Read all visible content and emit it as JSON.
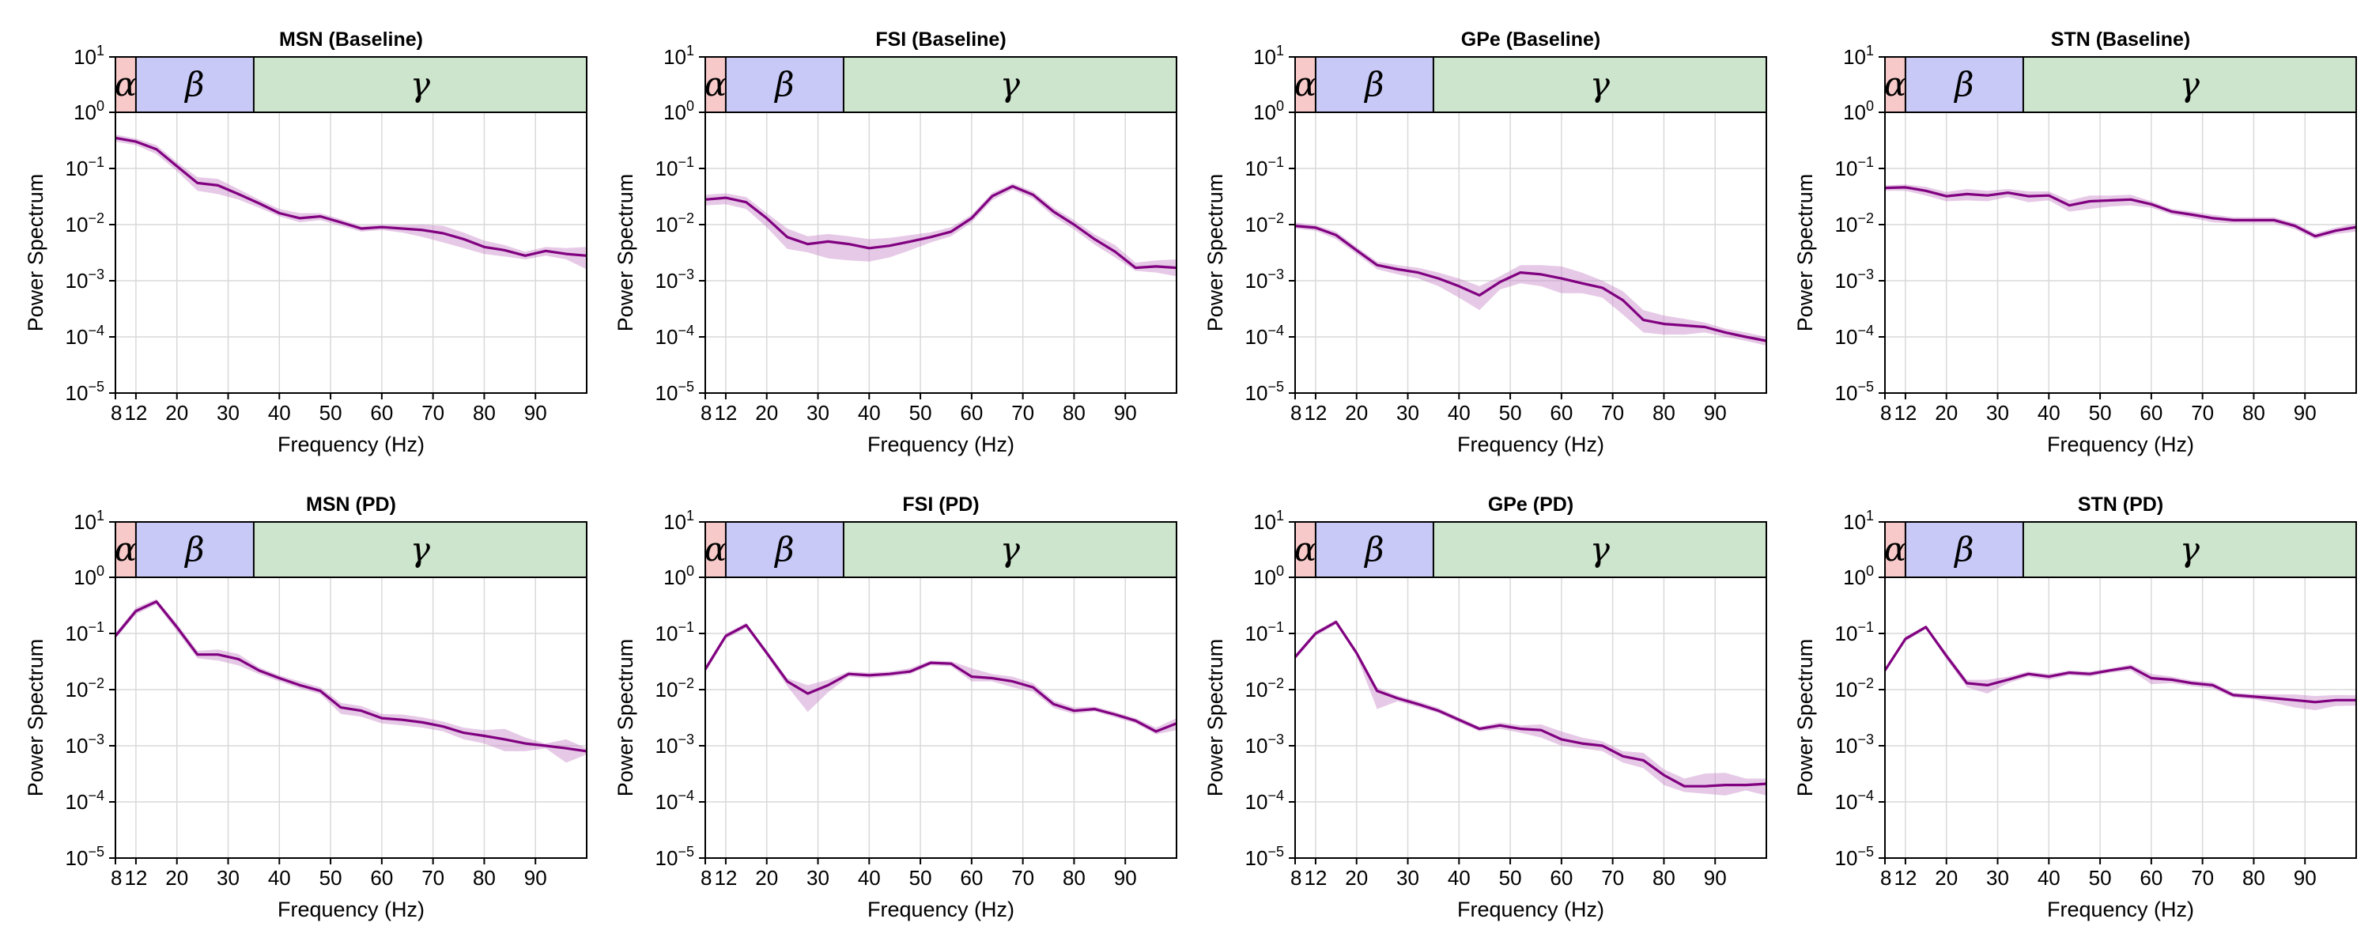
{
  "figure": {
    "xlabel": "Frequency (Hz)",
    "ylabel": "Power Spectrum",
    "band_labels": [
      "α",
      "β",
      "γ"
    ],
    "colors": {
      "line": "#800080",
      "band_fill": "#c888c8",
      "alpha_band": "#f7c9c8",
      "beta_band": "#c8c9f7",
      "gamma_band": "#cde5cd",
      "grid": "#d9d9d9"
    }
  },
  "chart_data": [
    {
      "type": "line",
      "title": "MSN (Baseline)",
      "xlabel": "Frequency (Hz)",
      "ylabel": "Power Spectrum",
      "yscale": "log",
      "ylim": [
        1e-05,
        1
      ],
      "xlim": [
        8,
        100
      ],
      "xticks": [
        8,
        12,
        20,
        30,
        40,
        50,
        60,
        70,
        80,
        90
      ],
      "bands": [
        {
          "label": "α",
          "range": [
            8,
            12
          ]
        },
        {
          "label": "β",
          "range": [
            12,
            35
          ]
        },
        {
          "label": "γ",
          "range": [
            35,
            100
          ]
        }
      ],
      "x": [
        8,
        12,
        16,
        20,
        24,
        28,
        32,
        36,
        40,
        44,
        48,
        52,
        56,
        60,
        64,
        68,
        72,
        76,
        80,
        84,
        88,
        92,
        96,
        100
      ],
      "y": [
        0.35,
        0.3,
        0.22,
        0.11,
        0.055,
        0.05,
        0.035,
        0.024,
        0.016,
        0.013,
        0.014,
        0.011,
        0.0085,
        0.009,
        0.0085,
        0.008,
        0.007,
        0.0055,
        0.004,
        0.0035,
        0.0028,
        0.0034,
        0.003,
        0.0028
      ],
      "low": [
        0.3,
        0.26,
        0.18,
        0.09,
        0.04,
        0.035,
        0.028,
        0.02,
        0.014,
        0.011,
        0.012,
        0.0095,
        0.0075,
        0.008,
        0.0072,
        0.006,
        0.0048,
        0.0038,
        0.003,
        0.0027,
        0.0024,
        0.0028,
        0.0024,
        0.0016
      ],
      "high": [
        0.4,
        0.34,
        0.26,
        0.13,
        0.07,
        0.065,
        0.043,
        0.028,
        0.019,
        0.016,
        0.016,
        0.0125,
        0.0095,
        0.01,
        0.0098,
        0.01,
        0.0095,
        0.0072,
        0.0052,
        0.0043,
        0.0033,
        0.004,
        0.0038,
        0.004
      ]
    },
    {
      "type": "line",
      "title": "FSI (Baseline)",
      "xlabel": "Frequency (Hz)",
      "ylabel": "Power Spectrum",
      "yscale": "log",
      "ylim": [
        1e-05,
        1
      ],
      "xlim": [
        8,
        100
      ],
      "xticks": [
        8,
        12,
        20,
        30,
        40,
        50,
        60,
        70,
        80,
        90
      ],
      "bands": [
        {
          "label": "α",
          "range": [
            8,
            12
          ]
        },
        {
          "label": "β",
          "range": [
            12,
            35
          ]
        },
        {
          "label": "γ",
          "range": [
            35,
            100
          ]
        }
      ],
      "x": [
        8,
        12,
        16,
        20,
        24,
        28,
        32,
        36,
        40,
        44,
        48,
        52,
        56,
        60,
        64,
        68,
        72,
        76,
        80,
        84,
        88,
        92,
        96,
        100
      ],
      "y": [
        0.028,
        0.03,
        0.025,
        0.013,
        0.006,
        0.0045,
        0.005,
        0.0045,
        0.0038,
        0.0042,
        0.005,
        0.006,
        0.0075,
        0.013,
        0.032,
        0.048,
        0.034,
        0.017,
        0.01,
        0.0055,
        0.0033,
        0.0017,
        0.0018,
        0.0017
      ],
      "low": [
        0.022,
        0.023,
        0.019,
        0.009,
        0.0037,
        0.0032,
        0.0025,
        0.0023,
        0.0022,
        0.0026,
        0.0035,
        0.0048,
        0.0062,
        0.011,
        0.027,
        0.042,
        0.029,
        0.014,
        0.0082,
        0.0044,
        0.0026,
        0.0015,
        0.0014,
        0.0012
      ],
      "high": [
        0.034,
        0.036,
        0.031,
        0.016,
        0.0085,
        0.0062,
        0.0068,
        0.0062,
        0.0055,
        0.0058,
        0.0065,
        0.0073,
        0.009,
        0.015,
        0.037,
        0.054,
        0.039,
        0.02,
        0.012,
        0.0067,
        0.0043,
        0.0021,
        0.0023,
        0.0024
      ]
    },
    {
      "type": "line",
      "title": "GPe (Baseline)",
      "xlabel": "Frequency (Hz)",
      "ylabel": "Power Spectrum",
      "yscale": "log",
      "ylim": [
        1e-05,
        1
      ],
      "xlim": [
        8,
        100
      ],
      "xticks": [
        8,
        12,
        20,
        30,
        40,
        50,
        60,
        70,
        80,
        90
      ],
      "bands": [
        {
          "label": "α",
          "range": [
            8,
            12
          ]
        },
        {
          "label": "β",
          "range": [
            12,
            35
          ]
        },
        {
          "label": "γ",
          "range": [
            35,
            100
          ]
        }
      ],
      "x": [
        8,
        12,
        16,
        20,
        24,
        28,
        32,
        36,
        40,
        44,
        48,
        52,
        56,
        60,
        64,
        68,
        72,
        76,
        80,
        84,
        88,
        92,
        96,
        100
      ],
      "y": [
        0.0095,
        0.0088,
        0.0065,
        0.0035,
        0.0019,
        0.0016,
        0.0014,
        0.0011,
        0.0008,
        0.00055,
        0.00095,
        0.0014,
        0.0013,
        0.0011,
        0.0009,
        0.00075,
        0.00045,
        0.0002,
        0.00017,
        0.00016,
        0.00015,
        0.00012,
        0.0001,
        8.5e-05
      ],
      "low": [
        0.0085,
        0.0078,
        0.0055,
        0.003,
        0.0016,
        0.0013,
        0.0011,
        0.0008,
        0.0005,
        0.0003,
        0.0007,
        0.0009,
        0.0008,
        0.0006,
        0.0006,
        0.0005,
        0.00025,
        0.00012,
        0.00011,
        0.00011,
        0.00012,
        0.0001,
        8.5e-05,
        7e-05
      ],
      "high": [
        0.011,
        0.0098,
        0.0075,
        0.004,
        0.0022,
        0.0019,
        0.0017,
        0.0014,
        0.0011,
        0.0008,
        0.0012,
        0.0019,
        0.0019,
        0.0018,
        0.0014,
        0.001,
        0.00065,
        0.0003,
        0.00024,
        0.00021,
        0.00018,
        0.00014,
        0.00012,
        0.0001
      ]
    },
    {
      "type": "line",
      "title": "STN (Baseline)",
      "xlabel": "Frequency (Hz)",
      "ylabel": "Power Spectrum",
      "yscale": "log",
      "ylim": [
        1e-05,
        1
      ],
      "xlim": [
        8,
        100
      ],
      "xticks": [
        8,
        12,
        20,
        30,
        40,
        50,
        60,
        70,
        80,
        90
      ],
      "bands": [
        {
          "label": "α",
          "range": [
            8,
            12
          ]
        },
        {
          "label": "β",
          "range": [
            12,
            35
          ]
        },
        {
          "label": "γ",
          "range": [
            35,
            100
          ]
        }
      ],
      "x": [
        8,
        12,
        16,
        20,
        24,
        28,
        32,
        36,
        40,
        44,
        48,
        52,
        56,
        60,
        64,
        68,
        72,
        76,
        80,
        84,
        88,
        92,
        96,
        100
      ],
      "y": [
        0.045,
        0.046,
        0.04,
        0.032,
        0.035,
        0.033,
        0.037,
        0.032,
        0.033,
        0.022,
        0.026,
        0.027,
        0.028,
        0.023,
        0.017,
        0.015,
        0.013,
        0.012,
        0.012,
        0.012,
        0.0095,
        0.0062,
        0.0078,
        0.009
      ],
      "low": [
        0.04,
        0.04,
        0.033,
        0.026,
        0.027,
        0.026,
        0.031,
        0.025,
        0.027,
        0.017,
        0.019,
        0.021,
        0.022,
        0.02,
        0.015,
        0.013,
        0.011,
        0.0105,
        0.0105,
        0.0105,
        0.0083,
        0.0055,
        0.0068,
        0.0075
      ],
      "high": [
        0.05,
        0.052,
        0.047,
        0.038,
        0.043,
        0.04,
        0.043,
        0.039,
        0.039,
        0.027,
        0.033,
        0.033,
        0.034,
        0.026,
        0.019,
        0.017,
        0.015,
        0.0135,
        0.0135,
        0.0135,
        0.0107,
        0.007,
        0.0088,
        0.0105
      ]
    },
    {
      "type": "line",
      "title": "MSN (PD)",
      "xlabel": "Frequency (Hz)",
      "ylabel": "Power Spectrum",
      "yscale": "log",
      "ylim": [
        1e-05,
        1
      ],
      "xlim": [
        8,
        100
      ],
      "xticks": [
        8,
        12,
        20,
        30,
        40,
        50,
        60,
        70,
        80,
        90
      ],
      "bands": [
        {
          "label": "α",
          "range": [
            8,
            12
          ]
        },
        {
          "label": "β",
          "range": [
            12,
            35
          ]
        },
        {
          "label": "γ",
          "range": [
            35,
            100
          ]
        }
      ],
      "x": [
        8,
        12,
        16,
        20,
        24,
        28,
        32,
        36,
        40,
        44,
        48,
        52,
        56,
        60,
        64,
        68,
        72,
        76,
        80,
        84,
        88,
        92,
        96,
        100
      ],
      "y": [
        0.09,
        0.25,
        0.37,
        0.13,
        0.042,
        0.042,
        0.035,
        0.022,
        0.016,
        0.012,
        0.0095,
        0.0048,
        0.0042,
        0.0031,
        0.0029,
        0.0026,
        0.0022,
        0.0017,
        0.0015,
        0.0013,
        0.0011,
        0.001,
        0.0009,
        0.0008
      ],
      "low": [
        0.08,
        0.22,
        0.33,
        0.11,
        0.036,
        0.033,
        0.027,
        0.019,
        0.014,
        0.0105,
        0.0083,
        0.0037,
        0.0033,
        0.0025,
        0.0023,
        0.0021,
        0.0018,
        0.0013,
        0.0011,
        0.0008,
        0.0008,
        0.0009,
        0.0005,
        0.0007
      ],
      "high": [
        0.1,
        0.29,
        0.41,
        0.15,
        0.049,
        0.052,
        0.043,
        0.025,
        0.018,
        0.014,
        0.011,
        0.0058,
        0.0051,
        0.0037,
        0.0036,
        0.0032,
        0.0027,
        0.0021,
        0.0019,
        0.002,
        0.0014,
        0.0011,
        0.0013,
        0.0009
      ]
    },
    {
      "type": "line",
      "title": "FSI (PD)",
      "xlabel": "Frequency (Hz)",
      "ylabel": "Power Spectrum",
      "yscale": "log",
      "ylim": [
        1e-05,
        1
      ],
      "xlim": [
        8,
        100
      ],
      "xticks": [
        8,
        12,
        20,
        30,
        40,
        50,
        60,
        70,
        80,
        90
      ],
      "bands": [
        {
          "label": "α",
          "range": [
            8,
            12
          ]
        },
        {
          "label": "β",
          "range": [
            12,
            35
          ]
        },
        {
          "label": "γ",
          "range": [
            35,
            100
          ]
        }
      ],
      "x": [
        8,
        12,
        16,
        20,
        24,
        28,
        32,
        36,
        40,
        44,
        48,
        52,
        56,
        60,
        64,
        68,
        72,
        76,
        80,
        84,
        88,
        92,
        96,
        100
      ],
      "y": [
        0.023,
        0.09,
        0.14,
        0.045,
        0.014,
        0.0085,
        0.012,
        0.019,
        0.018,
        0.019,
        0.021,
        0.03,
        0.029,
        0.017,
        0.016,
        0.014,
        0.011,
        0.0055,
        0.0042,
        0.0045,
        0.0036,
        0.0028,
        0.0018,
        0.0025
      ],
      "low": [
        0.02,
        0.08,
        0.125,
        0.04,
        0.0115,
        0.004,
        0.009,
        0.017,
        0.016,
        0.017,
        0.019,
        0.027,
        0.026,
        0.014,
        0.014,
        0.011,
        0.0092,
        0.0047,
        0.0037,
        0.0041,
        0.0032,
        0.0025,
        0.0016,
        0.0019
      ],
      "high": [
        0.026,
        0.1,
        0.155,
        0.05,
        0.016,
        0.012,
        0.015,
        0.021,
        0.02,
        0.021,
        0.024,
        0.033,
        0.032,
        0.024,
        0.019,
        0.017,
        0.013,
        0.0064,
        0.0048,
        0.005,
        0.004,
        0.0031,
        0.0021,
        0.0031
      ]
    },
    {
      "type": "line",
      "title": "GPe (PD)",
      "xlabel": "Frequency (Hz)",
      "ylabel": "Power Spectrum",
      "yscale": "log",
      "ylim": [
        1e-05,
        1
      ],
      "xlim": [
        8,
        100
      ],
      "xticks": [
        8,
        12,
        20,
        30,
        40,
        50,
        60,
        70,
        80,
        90
      ],
      "bands": [
        {
          "label": "α",
          "range": [
            8,
            12
          ]
        },
        {
          "label": "β",
          "range": [
            12,
            35
          ]
        },
        {
          "label": "γ",
          "range": [
            35,
            100
          ]
        }
      ],
      "x": [
        8,
        12,
        16,
        20,
        24,
        28,
        32,
        36,
        40,
        44,
        48,
        52,
        56,
        60,
        64,
        68,
        72,
        76,
        80,
        84,
        88,
        92,
        96,
        100
      ],
      "y": [
        0.038,
        0.1,
        0.16,
        0.045,
        0.0095,
        0.007,
        0.0055,
        0.0042,
        0.0029,
        0.002,
        0.0023,
        0.002,
        0.0019,
        0.0013,
        0.0011,
        0.001,
        0.00065,
        0.00055,
        0.0003,
        0.00019,
        0.00019,
        0.0002,
        0.0002,
        0.00021
      ],
      "low": [
        0.034,
        0.09,
        0.145,
        0.04,
        0.0045,
        0.0062,
        0.0049,
        0.0038,
        0.0026,
        0.0018,
        0.002,
        0.0017,
        0.0014,
        0.001,
        0.0009,
        0.0008,
        0.0005,
        0.0004,
        0.0002,
        0.00015,
        0.00014,
        0.00013,
        0.00016,
        0.00013
      ],
      "high": [
        0.042,
        0.11,
        0.175,
        0.05,
        0.011,
        0.0078,
        0.0062,
        0.0047,
        0.0032,
        0.0022,
        0.0026,
        0.0023,
        0.0024,
        0.0018,
        0.0014,
        0.0012,
        0.0008,
        0.00075,
        0.00038,
        0.00026,
        0.00032,
        0.00033,
        0.00026,
        0.00026
      ]
    },
    {
      "type": "line",
      "title": "STN (PD)",
      "xlabel": "Frequency (Hz)",
      "ylabel": "Power Spectrum",
      "yscale": "log",
      "ylim": [
        1e-05,
        1
      ],
      "xlim": [
        8,
        100
      ],
      "xticks": [
        8,
        12,
        20,
        30,
        40,
        50,
        60,
        70,
        80,
        90
      ],
      "bands": [
        {
          "label": "α",
          "range": [
            8,
            12
          ]
        },
        {
          "label": "β",
          "range": [
            12,
            35
          ]
        },
        {
          "label": "γ",
          "range": [
            35,
            100
          ]
        }
      ],
      "x": [
        8,
        12,
        16,
        20,
        24,
        28,
        32,
        36,
        40,
        44,
        48,
        52,
        56,
        60,
        64,
        68,
        72,
        76,
        80,
        84,
        88,
        92,
        96,
        100
      ],
      "y": [
        0.022,
        0.08,
        0.13,
        0.04,
        0.013,
        0.012,
        0.015,
        0.019,
        0.017,
        0.02,
        0.019,
        0.022,
        0.025,
        0.016,
        0.015,
        0.013,
        0.012,
        0.008,
        0.0075,
        0.007,
        0.0065,
        0.006,
        0.0065,
        0.0065
      ],
      "low": [
        0.02,
        0.072,
        0.12,
        0.035,
        0.011,
        0.0085,
        0.013,
        0.017,
        0.015,
        0.018,
        0.017,
        0.02,
        0.022,
        0.0125,
        0.013,
        0.0115,
        0.0105,
        0.0072,
        0.0067,
        0.0058,
        0.0048,
        0.0043,
        0.0051,
        0.0052
      ],
      "high": [
        0.024,
        0.088,
        0.14,
        0.045,
        0.015,
        0.015,
        0.017,
        0.021,
        0.019,
        0.022,
        0.021,
        0.024,
        0.028,
        0.019,
        0.017,
        0.0145,
        0.0135,
        0.0088,
        0.0083,
        0.0082,
        0.0082,
        0.0077,
        0.008,
        0.0079
      ]
    }
  ]
}
